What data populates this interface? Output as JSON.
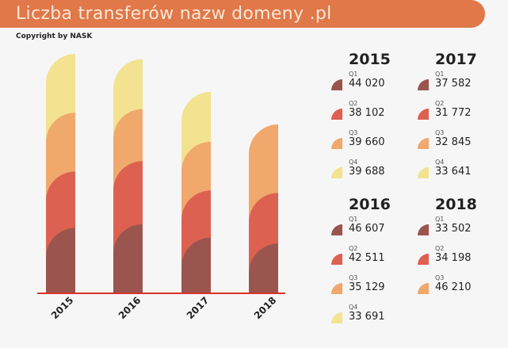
{
  "header": {
    "title": "Liczba transferów nazw domeny .pl",
    "copyright": "Copyright by NASK"
  },
  "chart_data": {
    "type": "bar",
    "stacked": true,
    "categories": [
      "2015",
      "2016",
      "2017",
      "2018"
    ],
    "series": [
      {
        "name": "Q1",
        "color": "#9b554f",
        "values": [
          44020,
          46607,
          37582,
          33502
        ],
        "labels": [
          "44 020",
          "46 607",
          "37 582",
          "33 502"
        ]
      },
      {
        "name": "Q2",
        "color": "#dd6150",
        "values": [
          38102,
          42511,
          31772,
          34198
        ],
        "labels": [
          "38 102",
          "42 511",
          "31 772",
          "34 198"
        ]
      },
      {
        "name": "Q3",
        "color": "#f0a86c",
        "values": [
          39660,
          35129,
          32845,
          46210
        ],
        "labels": [
          "39 660",
          "35 129",
          "32 845",
          "46 210"
        ]
      },
      {
        "name": "Q4",
        "color": "#f3e290",
        "values": [
          39688,
          33691,
          33641,
          null
        ],
        "labels": [
          "39 688",
          "33 691",
          "33 641",
          null
        ]
      }
    ],
    "baseline_color": "#d9322a"
  }
}
